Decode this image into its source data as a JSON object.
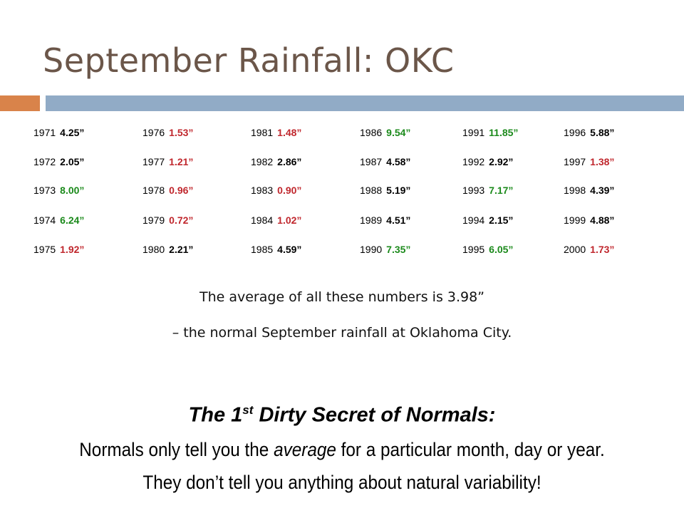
{
  "slide": {
    "title": "September Rainfall: OKC",
    "accent_colors": {
      "orange_bar": "#d9834a",
      "blue_bar": "#91abc6",
      "above_normal": "#1b8a1b",
      "below_normal": "#c0272d"
    }
  },
  "rainfall_table": {
    "columns": [
      [
        {
          "year": "1971",
          "value": "4.25”",
          "status": "norm"
        },
        {
          "year": "1972",
          "value": "2.05”",
          "status": "norm"
        },
        {
          "year": "1973",
          "value": "8.00”",
          "status": "up"
        },
        {
          "year": "1974",
          "value": "6.24”",
          "status": "up"
        },
        {
          "year": "1975",
          "value": "1.92”",
          "status": "down"
        }
      ],
      [
        {
          "year": "1976",
          "value": "1.53”",
          "status": "down"
        },
        {
          "year": "1977",
          "value": "1.21”",
          "status": "down"
        },
        {
          "year": "1978",
          "value": "0.96”",
          "status": "down"
        },
        {
          "year": "1979",
          "value": "0.72”",
          "status": "down"
        },
        {
          "year": "1980",
          "value": "2.21”",
          "status": "norm"
        }
      ],
      [
        {
          "year": "1981",
          "value": "1.48”",
          "status": "down"
        },
        {
          "year": "1982",
          "value": "2.86”",
          "status": "norm"
        },
        {
          "year": "1983",
          "value": "0.90”",
          "status": "down"
        },
        {
          "year": "1984",
          "value": "1.02”",
          "status": "down"
        },
        {
          "year": "1985",
          "value": "4.59”",
          "status": "norm"
        }
      ],
      [
        {
          "year": "1986",
          "value": "9.54”",
          "status": "up"
        },
        {
          "year": "1987",
          "value": "4.58”",
          "status": "norm"
        },
        {
          "year": "1988",
          "value": "5.19”",
          "status": "norm"
        },
        {
          "year": "1989",
          "value": "4.51”",
          "status": "norm"
        },
        {
          "year": "1990",
          "value": "7.35”",
          "status": "up"
        }
      ],
      [
        {
          "year": "1991",
          "value": "11.85”",
          "status": "up"
        },
        {
          "year": "1992",
          "value": "2.92”",
          "status": "norm"
        },
        {
          "year": "1993",
          "value": "7.17”",
          "status": "up"
        },
        {
          "year": "1994",
          "value": "2.15”",
          "status": "norm"
        },
        {
          "year": "1995",
          "value": "6.05”",
          "status": "up"
        }
      ],
      [
        {
          "year": "1996",
          "value": "5.88”",
          "status": "norm"
        },
        {
          "year": "1997",
          "value": "1.38”",
          "status": "down"
        },
        {
          "year": "1998",
          "value": "4.39”",
          "status": "norm"
        },
        {
          "year": "1999",
          "value": "4.88”",
          "status": "norm"
        },
        {
          "year": "2000",
          "value": "1.73”",
          "status": "down"
        }
      ]
    ]
  },
  "average": {
    "line1": "The average of all these numbers is 3.98”",
    "line2": "– the normal September rainfall at Oklahoma City."
  },
  "secret": {
    "title_pre": "The 1",
    "title_sup": "st",
    "title_post": " Dirty Secret of Normals:",
    "line1_pre": "Normals only tell you the ",
    "line1_em": "average",
    "line1_post": " for a particular month, day or year.",
    "line2": "They don’t tell you anything about natural variability!"
  }
}
